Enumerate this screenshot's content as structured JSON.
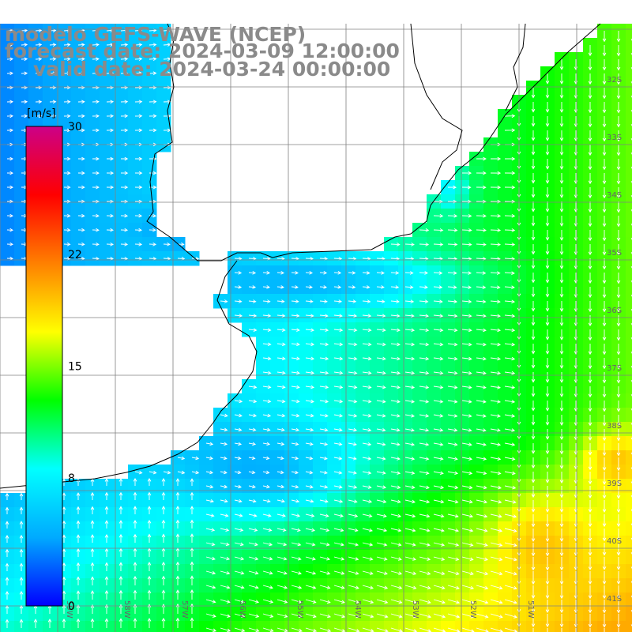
{
  "title": {
    "model": "modelo GEFS-WAVE (NCEP)",
    "forecast_date": "forecast date: 2024-03-09 12:00:00",
    "valid_date": "valid date: 2024-03-24 00:00:00"
  },
  "colorbar": {
    "unit": "[m/s]",
    "ticks": [
      "30",
      "22",
      "15",
      "8",
      "0"
    ],
    "tick_values": [
      30,
      22,
      15,
      8,
      0
    ],
    "stops": [
      "#0000ff",
      "#00aaff",
      "#00ffff",
      "#00ff00",
      "#ffff00",
      "#ff8000",
      "#ff0000",
      "#cc0088"
    ]
  },
  "lat_labels": [
    "32S",
    "33S",
    "34S",
    "35S",
    "36S",
    "37S",
    "38S",
    "39S",
    "40S",
    "41S"
  ],
  "lon_labels": [
    "59W",
    "58W",
    "57W",
    "56W",
    "55W",
    "54W",
    "53W",
    "52W",
    "51W"
  ],
  "colors": {
    "land": "#ffffff",
    "grid": "#808080",
    "coast": "#000000",
    "arrow": "#ffffff",
    "title_text": "#8a8a8a"
  },
  "legend_items": []
}
